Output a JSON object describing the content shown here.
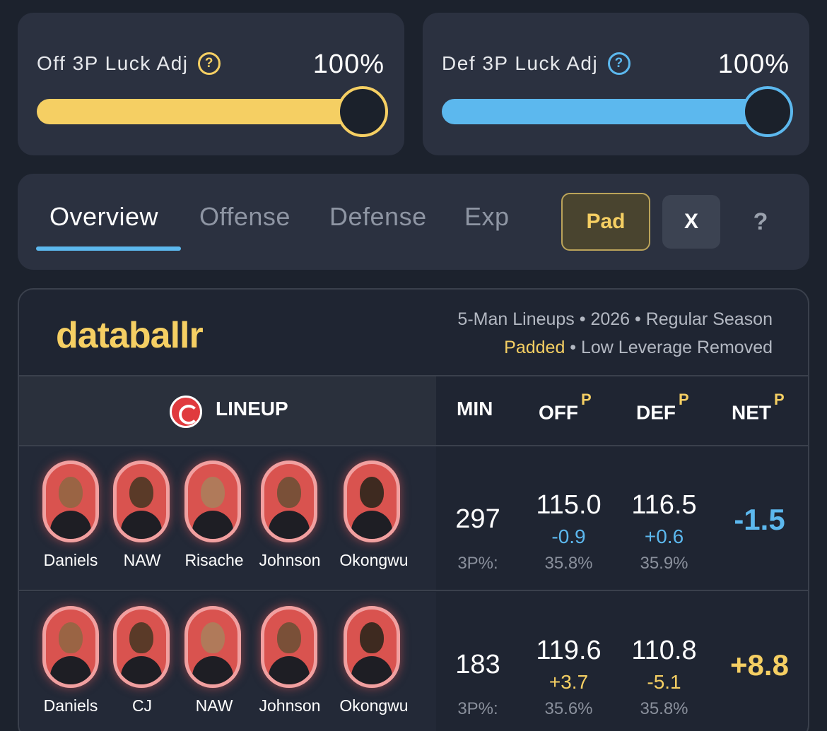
{
  "sliders": {
    "off": {
      "label": "Off 3P Luck Adj",
      "value": "100%",
      "level": 1.0,
      "color": "#f5cf63",
      "help": "?"
    },
    "def": {
      "label": "Def 3P Luck Adj",
      "value": "100%",
      "level": 1.0,
      "color": "#5cb8ee",
      "help": "?"
    }
  },
  "tabs": [
    {
      "label": "Overview",
      "active": true
    },
    {
      "label": "Offense",
      "active": false
    },
    {
      "label": "Defense",
      "active": false
    },
    {
      "label": "Exp",
      "active": false
    }
  ],
  "buttons": {
    "pad": "Pad",
    "x": "X",
    "help": "?"
  },
  "table": {
    "brand": "databallr",
    "meta_line1": "5-Man Lineups • 2026 • Regular Season",
    "meta_padded": "Padded",
    "meta_rest": " • Low Leverage Removed",
    "headers": {
      "lineup": "LINEUP",
      "min": "MIN",
      "off": "OFF",
      "def": "DEF",
      "net": "NET",
      "sup": "P"
    },
    "rows": [
      {
        "players": [
          "Daniels",
          "NAW",
          "Risache",
          "Johnson",
          "Okongwu"
        ],
        "min": "297",
        "min_sub": "3P%:",
        "off": "115.0",
        "off_delta": "-0.9",
        "off_3p": "35.8%",
        "def": "116.5",
        "def_delta": "+0.6",
        "def_3p": "35.9%",
        "net": "-1.5",
        "net_color": "#5cb8ee",
        "delta_color": "#5cb8ee"
      },
      {
        "players": [
          "Daniels",
          "CJ",
          "NAW",
          "Johnson",
          "Okongwu"
        ],
        "min": "183",
        "min_sub": "3P%:",
        "off": "119.6",
        "off_delta": "+3.7",
        "off_3p": "35.6%",
        "def": "110.8",
        "def_delta": "-5.1",
        "def_3p": "35.8%",
        "net": "+8.8",
        "net_color": "#f5cf63",
        "delta_color": "#f5cf63"
      }
    ]
  }
}
